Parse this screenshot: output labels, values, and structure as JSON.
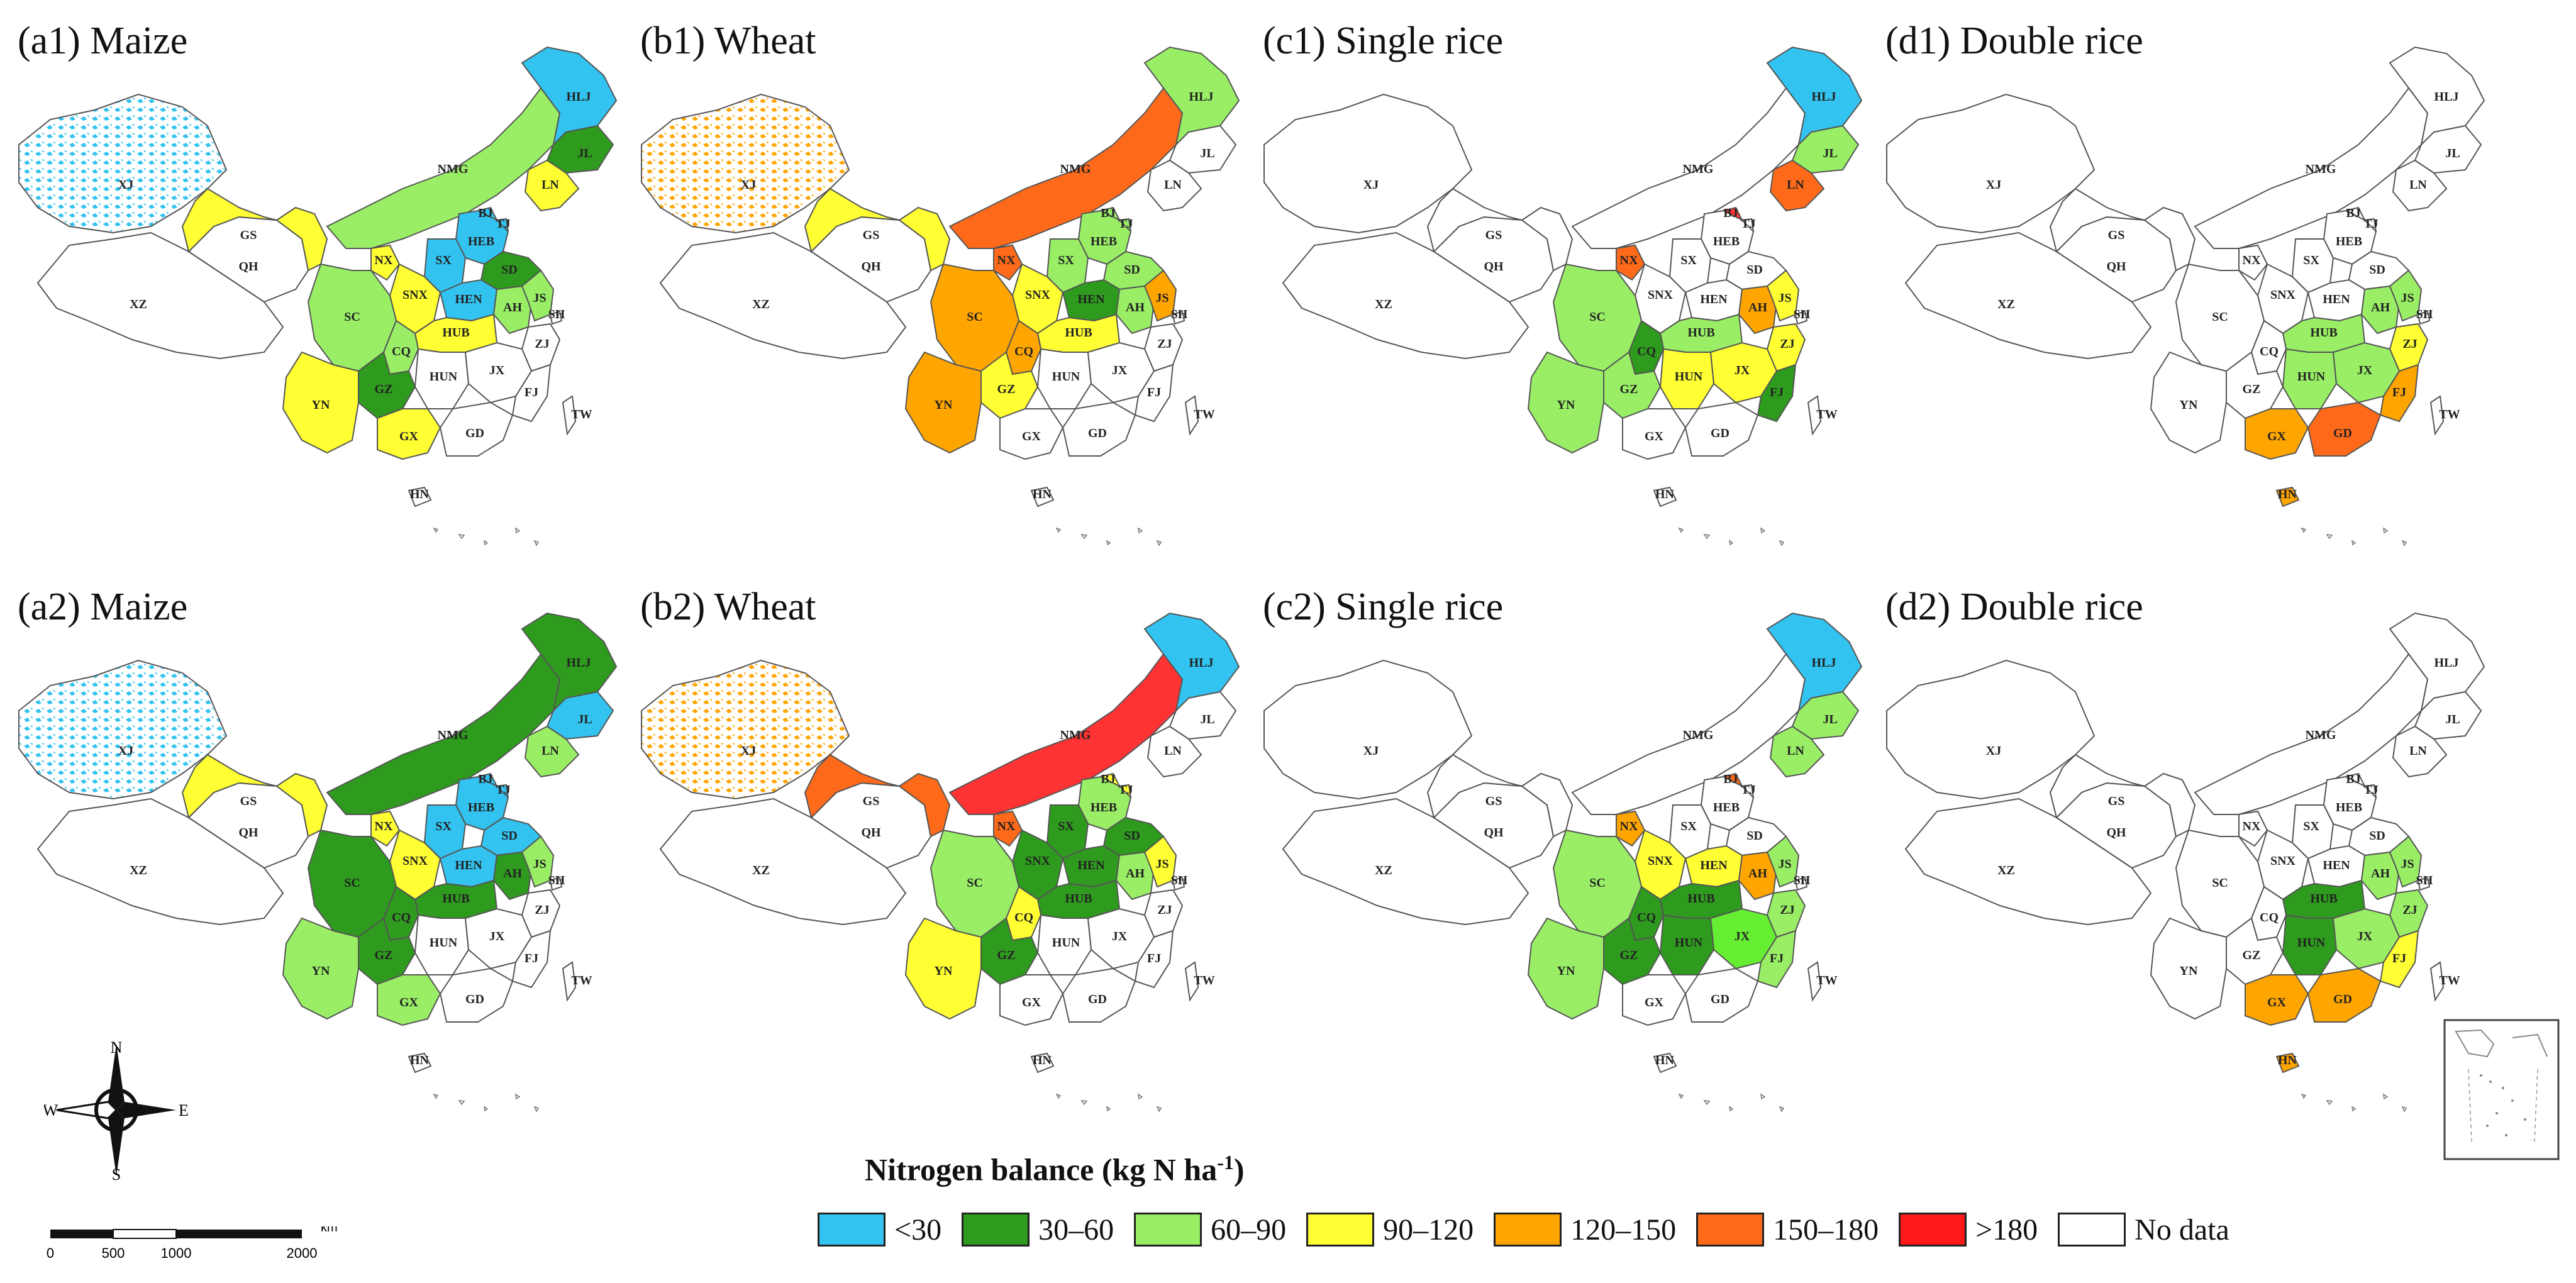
{
  "panels": [
    {
      "id": "a1",
      "title": "(a1) Maize",
      "fills": {
        "XJ": "lightblue-spots",
        "HLJ": "#33c3f0",
        "JL": "#2e9a1e",
        "LN": "#ffff33",
        "NMG": "#99ee66",
        "BJ": "#33c3f0",
        "TJ": "#33c3f0",
        "HEB": "#33c3f0",
        "SX": "#33c3f0",
        "SD": "#2e9a1e",
        "HEN": "#33c3f0",
        "SNX": "#ffff33",
        "NX": "#ffff33",
        "GS": "#ffff33",
        "AH": "#99ee66",
        "JS": "#99ee66",
        "HUB": "#ffff33",
        "SC": "#99ee66",
        "CQ": "#99ee66",
        "GZ": "#2e9a1e",
        "YN": "#ffff33",
        "GX": "#ffff33"
      }
    },
    {
      "id": "b1",
      "title": "(b1) Wheat",
      "fills": {
        "XJ": "orange-spots",
        "HLJ": "#99ee66",
        "NMG": "#ff6a1a",
        "NX": "#ff6a1a",
        "GS": "#ffff33",
        "SNX": "#ffff33",
        "SX": "#99ee66",
        "HEB": "#99ee66",
        "BJ": "#99ee66",
        "TJ": "#99ee66",
        "SD": "#99ee66",
        "HEN": "#2e9a1e",
        "JS": "#ffa500",
        "AH": "#99ee66",
        "HUB": "#ffff33",
        "SC": "#ffa500",
        "CQ": "#ffa500",
        "GZ": "#ffff33",
        "YN": "#ffa500"
      }
    },
    {
      "id": "c1",
      "title": "(c1) Single rice",
      "fills": {
        "HLJ": "#33c3f0",
        "JL": "#99ee66",
        "LN": "#ff6a1a",
        "NX": "#ff6a1a",
        "BJ": "#ff3333",
        "JS": "#ffff33",
        "AH": "#ffa500",
        "HUB": "#99ee66",
        "SC": "#99ee66",
        "CQ": "#2e9a1e",
        "GZ": "#99ee66",
        "HUN": "#ffff33",
        "JX": "#ffff33",
        "ZJ": "#ffff33",
        "FJ": "#2e9a1e",
        "YN": "#99ee66"
      }
    },
    {
      "id": "d1",
      "title": "(d1) Double rice",
      "fills": {
        "AH": "#99ee66",
        "HUB": "#99ee66",
        "JS": "#99ee66",
        "HUN": "#99ee66",
        "JX": "#99ee66",
        "ZJ": "#ffff33",
        "FJ": "#ffa500",
        "GX": "#ffa500",
        "GD": "#ff6a1a",
        "HN": "#ffa500"
      }
    },
    {
      "id": "a2",
      "title": "(a2) Maize",
      "fills": {
        "XJ": "lightblue-spots",
        "HLJ": "#2e9a1e",
        "JL": "#33c3f0",
        "LN": "#99ee66",
        "NMG": "#2e9a1e",
        "BJ": "#33c3f0",
        "TJ": "#33c3f0",
        "HEB": "#33c3f0",
        "SX": "#33c3f0",
        "SD": "#33c3f0",
        "HEN": "#33c3f0",
        "SNX": "#ffff33",
        "NX": "#ffff33",
        "GS": "#ffff33",
        "AH": "#2e9a1e",
        "JS": "#99ee66",
        "HUB": "#2e9a1e",
        "SC": "#2e9a1e",
        "CQ": "#2e9a1e",
        "GZ": "#2e9a1e",
        "YN": "#99ee66",
        "GX": "#99ee66"
      }
    },
    {
      "id": "b2",
      "title": "(b2) Wheat",
      "fills": {
        "XJ": "orange-spots",
        "HLJ": "#33c3f0",
        "NMG": "#ff3333",
        "NX": "#ff6a1a",
        "GS": "#ff6a1a",
        "SNX": "#2e9a1e",
        "SX": "#2e9a1e",
        "HEB": "#99ee66",
        "BJ": "#ffff33",
        "TJ": "#ffff33",
        "SD": "#2e9a1e",
        "HEN": "#2e9a1e",
        "JS": "#ffff33",
        "AH": "#99ee66",
        "HUB": "#2e9a1e",
        "SC": "#99ee66",
        "CQ": "#ffff33",
        "GZ": "#2e9a1e",
        "YN": "#ffff33"
      }
    },
    {
      "id": "c2",
      "title": "(c2) Single rice",
      "fills": {
        "HLJ": "#33c3f0",
        "JL": "#99ee66",
        "LN": "#99ee66",
        "NX": "#ffa500",
        "BJ": "#ff6a1a",
        "SNX": "#ffff33",
        "HEN": "#ffff33",
        "JS": "#99ee66",
        "AH": "#ffa500",
        "HUB": "#2e9a1e",
        "SC": "#99ee66",
        "CQ": "#2e9a1e",
        "GZ": "#2e9a1e",
        "HUN": "#2e9a1e",
        "JX": "#66ee33",
        "ZJ": "#99ee66",
        "FJ": "#99ee66",
        "YN": "#99ee66"
      }
    },
    {
      "id": "d2",
      "title": "(d2) Double rice",
      "fills": {
        "AH": "#99ee66",
        "HUB": "#2e9a1e",
        "JS": "#99ee66",
        "HUN": "#2e9a1e",
        "JX": "#99ee66",
        "ZJ": "#99ee66",
        "FJ": "#ffff33",
        "GX": "#ffa500",
        "GD": "#ffa500",
        "HN": "#ffa500"
      }
    }
  ],
  "province_labels": [
    "XJ",
    "XZ",
    "QH",
    "GS",
    "NMG",
    "HLJ",
    "JL",
    "LN",
    "BJ",
    "TJ",
    "HEB",
    "SX",
    "SD",
    "NX",
    "SNX",
    "HEN",
    "AH",
    "JS",
    "SH",
    "HUB",
    "SC",
    "CQ",
    "ZJ",
    "HUN",
    "JX",
    "FJ",
    "GZ",
    "YN",
    "GX",
    "GD",
    "TW",
    "HN"
  ],
  "legend": {
    "title": "Nitrogen balance (kg N ha",
    "title_sup": "-1",
    "title_end": ")",
    "items": [
      {
        "label": "<30",
        "color": "#33c3f0"
      },
      {
        "label": "30–60",
        "color": "#2e9a1e"
      },
      {
        "label": "60–90",
        "color": "#99ee66"
      },
      {
        "label": "90–120",
        "color": "#ffff33"
      },
      {
        "label": "120–150",
        "color": "#ffa500"
      },
      {
        "label": "150–180",
        "color": "#ff6a1a"
      },
      {
        "label": ">180",
        "color": "#ff1a1a"
      },
      {
        "label": "No data",
        "color": "#ffffff"
      }
    ]
  },
  "compass": {
    "n": "N",
    "s": "S",
    "e": "E",
    "w": "W"
  },
  "scale": {
    "ticks": [
      "0",
      "500",
      "1000",
      "2000"
    ],
    "unit": "km"
  }
}
